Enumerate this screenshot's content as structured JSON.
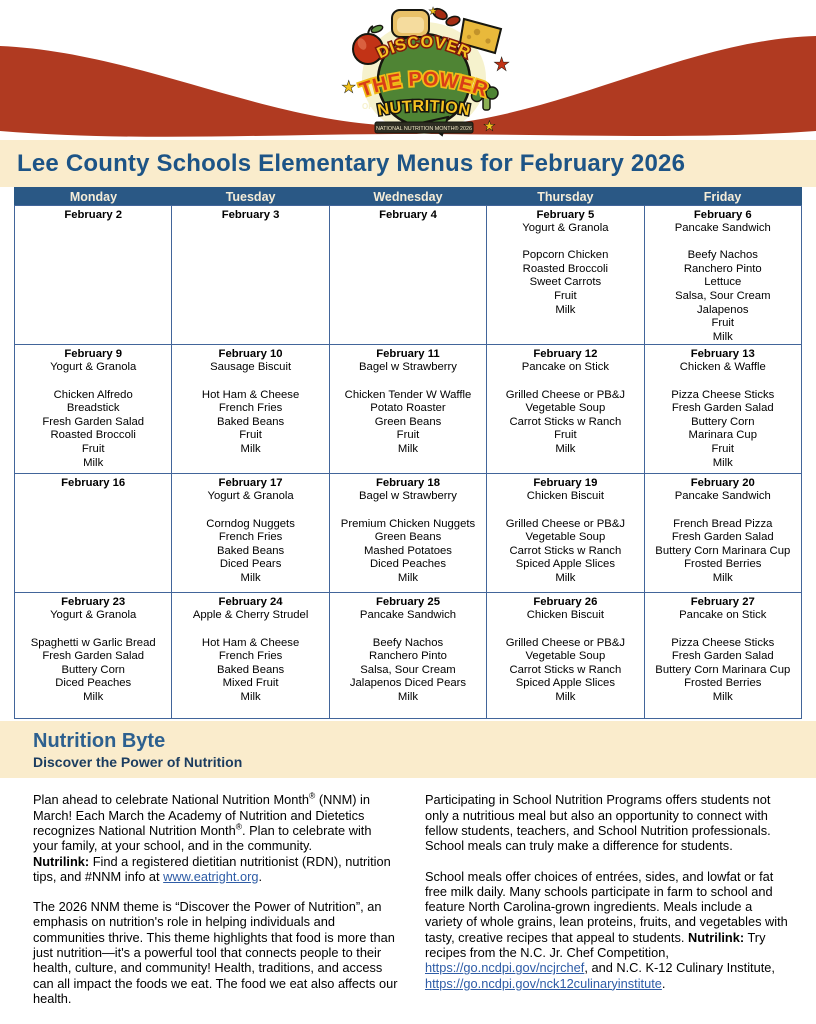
{
  "colors": {
    "brick": "#b03a21",
    "cream": "#faeccc",
    "table_header_blue": "#2a5885",
    "title_blue": "#1d5486",
    "byte_heading_blue": "#2d608f",
    "byte_subheading_navy": "#1b3c5f",
    "link_blue": "#2e5ca6",
    "border_blue": "#42659a",
    "header_text_cream": "#f6edd8",
    "text_black": "#000000"
  },
  "header": {
    "logo": {
      "line1": "DISCOVER",
      "line2": "THE POWER",
      "of": "OF",
      "line3": "NUTRITION",
      "banner": "NATIONAL NUTRITION MONTH® 2026"
    }
  },
  "title": "Lee County Schools Elementary Menus for February 2026",
  "menu": {
    "day_headers": [
      "Monday",
      "Tuesday",
      "Wednesday",
      "Thursday",
      "Friday"
    ],
    "weeks": [
      {
        "cells": [
          {
            "date": "February 2",
            "items": []
          },
          {
            "date": "February 3",
            "items": []
          },
          {
            "date": "February 4",
            "items": []
          },
          {
            "date": "February 5",
            "items": [
              "Yogurt & Granola",
              "",
              "Popcorn Chicken",
              "Roasted Broccoli",
              "Sweet Carrots",
              "Fruit",
              "Milk"
            ]
          },
          {
            "date": "February 6",
            "items": [
              "Pancake Sandwich",
              "",
              "Beefy Nachos",
              "Ranchero Pinto",
              "Lettuce",
              "Salsa, Sour Cream",
              "Jalapenos",
              "Fruit",
              "Milk"
            ]
          }
        ]
      },
      {
        "cells": [
          {
            "date": "February 9",
            "items": [
              "Yogurt & Granola",
              "",
              "Chicken Alfredo",
              "Breadstick",
              "Fresh Garden Salad",
              "Roasted Broccoli",
              "Fruit",
              "Milk"
            ]
          },
          {
            "date": "February 10",
            "items": [
              "Sausage Biscuit",
              "",
              "Hot Ham & Cheese",
              "French Fries",
              "Baked Beans",
              "Fruit",
              "Milk"
            ]
          },
          {
            "date": "February 11",
            "items": [
              "Bagel w Strawberry",
              "",
              "Chicken Tender W Waffle",
              "Potato Roaster",
              "Green Beans",
              "Fruit",
              "Milk"
            ]
          },
          {
            "date": "February 12",
            "items": [
              "Pancake on Stick",
              "",
              "Grilled Cheese or PB&J",
              "Vegetable Soup",
              "Carrot Sticks w Ranch",
              "Fruit",
              "Milk"
            ]
          },
          {
            "date": "February 13",
            "items": [
              "Chicken & Waffle",
              "",
              "Pizza Cheese Sticks",
              "Fresh Garden Salad",
              "Buttery Corn",
              "Marinara Cup",
              "Fruit",
              "Milk"
            ]
          }
        ]
      },
      {
        "cells": [
          {
            "date": "February 16",
            "items": []
          },
          {
            "date": "February 17",
            "items": [
              "Yogurt & Granola",
              "",
              "Corndog Nuggets",
              "French Fries",
              "Baked Beans",
              "Diced Pears",
              "Milk"
            ]
          },
          {
            "date": "February 18",
            "items": [
              "Bagel w Strawberry",
              "",
              "Premium Chicken Nuggets",
              "Green Beans",
              "Mashed Potatoes",
              "Diced Peaches",
              "Milk"
            ]
          },
          {
            "date": "February 19",
            "items": [
              "Chicken Biscuit",
              "",
              "Grilled Cheese or PB&J",
              "Vegetable Soup",
              "Carrot Sticks w Ranch",
              "Spiced Apple Slices",
              "Milk"
            ]
          },
          {
            "date": "February 20",
            "items": [
              "Pancake Sandwich",
              "",
              "French Bread Pizza",
              "Fresh Garden Salad",
              "Buttery Corn Marinara Cup",
              "Frosted Berries",
              "Milk"
            ]
          }
        ]
      },
      {
        "cells": [
          {
            "date": "February 23",
            "items": [
              "Yogurt & Granola",
              "",
              "Spaghetti w Garlic Bread",
              "Fresh Garden Salad",
              "Buttery Corn",
              "Diced Peaches",
              "Milk"
            ]
          },
          {
            "date": "February 24",
            "items": [
              "Apple & Cherry Strudel",
              "",
              "Hot Ham & Cheese",
              "French Fries",
              "Baked Beans",
              "Mixed Fruit",
              "Milk"
            ]
          },
          {
            "date": "February 25",
            "items": [
              "Pancake Sandwich",
              "",
              "Beefy Nachos",
              "Ranchero Pinto",
              "Salsa, Sour Cream",
              "Jalapenos Diced Pears",
              "Milk"
            ]
          },
          {
            "date": "February 26",
            "items": [
              "Chicken Biscuit",
              "",
              "Grilled Cheese or PB&J",
              "Vegetable Soup",
              "Carrot Sticks w Ranch",
              "Spiced Apple Slices",
              "Milk"
            ]
          },
          {
            "date": "February 27",
            "items": [
              "Pancake on Stick",
              "",
              "Pizza Cheese Sticks",
              "Fresh Garden Salad",
              "Buttery Corn Marinara Cup",
              "Frosted Berries",
              "Milk"
            ]
          }
        ]
      }
    ]
  },
  "nutrition_byte": {
    "heading": "Nutrition Byte",
    "subheading": "Discover the Power of Nutrition",
    "columns": [
      {
        "paragraphs": [
          [
            {
              "text": "Plan ahead to celebrate National Nutrition Month"
            },
            {
              "text": "®",
              "sup": true
            },
            {
              "text": " (NNM) in March! Each March the Academy of Nutrition and Dietetics recognizes National Nutrition Month"
            },
            {
              "text": "®",
              "sup": true
            },
            {
              "text": ". Plan to celebrate with your family, at your school, and in the community."
            },
            {
              "br": true
            },
            {
              "text": "Nutrilink:",
              "bold": true
            },
            {
              "text": " Find a registered dietitian nutritionist (RDN), nutrition tips, and #NNM info at "
            },
            {
              "text": "www.eatright.org",
              "link": true
            },
            {
              "text": "."
            }
          ],
          [
            {
              "text": "The 2026 NNM theme is “Discover the Power of Nutrition”, an emphasis on nutrition's role in helping individuals and communities thrive. This theme highlights that food is more than just nutrition—it's a powerful tool that connects people to their health, culture, and community! Health, traditions, and access can all impact the foods we eat. The food we eat also affects our health."
            }
          ]
        ]
      },
      {
        "paragraphs": [
          [
            {
              "text": "Participating in School Nutrition Programs offers students not only a nutritious meal but also an opportunity to connect with fellow students, teachers, and School Nutrition professionals. School meals can truly make a difference for students."
            }
          ],
          [
            {
              "text": "School meals offer choices of entrées, sides, and lowfat or fat free milk daily. Many schools participate in farm to school and feature North Carolina-grown ingredients. Meals include a variety of whole grains, lean proteins, fruits, and vegetables with tasty, creative recipes that appeal to students. "
            },
            {
              "text": "Nutrilink:",
              "bold": true
            },
            {
              "text": " Try recipes from the N.C. Jr. Chef Competition, "
            },
            {
              "text": "https://go.ncdpi.gov/ncjrchef",
              "link": true
            },
            {
              "text": ", and N.C. K-12 Culinary Institute, "
            },
            {
              "text": "https://go.ncdpi.gov/nck12culinaryinstitute",
              "link": true
            },
            {
              "text": "."
            }
          ]
        ]
      }
    ]
  }
}
